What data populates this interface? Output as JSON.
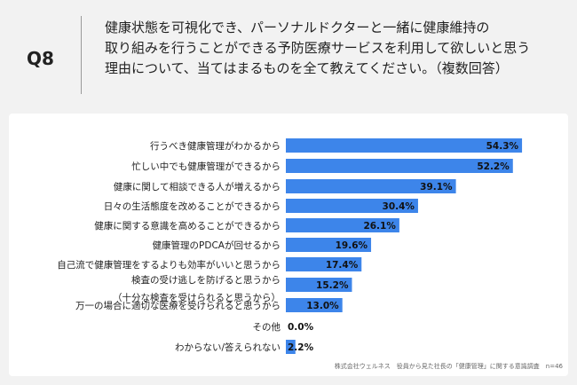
{
  "header": {
    "q_label": "Q8",
    "question_lines": [
      "健康状態を可視化でき、パーソナルドクターと一緒に健康維持の",
      "取り組みを行うことができる予防医療サービスを利用して欲しいと思う",
      "理由について、当てはまるものを全て教えてください。（複数回答）"
    ]
  },
  "footer": "株式会社ウェルネス　役員から見た社長の「健康管理」に関する意識調査　n=46",
  "colors": {
    "bar": "#3d85ea",
    "background": "#f2f2f2",
    "card": "#ffffff"
  },
  "chart_data": {
    "type": "bar",
    "orientation": "horizontal",
    "categories": [
      [
        "行うべき健康管理がわかるから"
      ],
      [
        "忙しい中でも健康管理ができるから"
      ],
      [
        "健康に関して相談できる人が増えるから"
      ],
      [
        "日々の生活態度を改めることができるから"
      ],
      [
        "健康に関する意識を高めることができるから"
      ],
      [
        "健康管理のPDCAが回せるから"
      ],
      [
        "自己流で健康管理をするよりも効率がいいと思うから"
      ],
      [
        "検査の受け逃しを防げると思うから",
        "（十分な検査を受けられると思うから）"
      ],
      [
        "万一の場合に適切な医療を受けられると思うから"
      ],
      [
        "その他"
      ],
      [
        "わからない/答えられない"
      ]
    ],
    "values": [
      54.3,
      52.2,
      39.1,
      30.4,
      26.1,
      19.6,
      17.4,
      15.2,
      13.0,
      0.0,
      2.2
    ],
    "value_labels": [
      "54.3%",
      "52.2%",
      "39.1%",
      "30.4%",
      "26.1%",
      "19.6%",
      "17.4%",
      "15.2%",
      "13.0%",
      "0.0%",
      "2.2%"
    ],
    "xlim": [
      0,
      60
    ]
  }
}
